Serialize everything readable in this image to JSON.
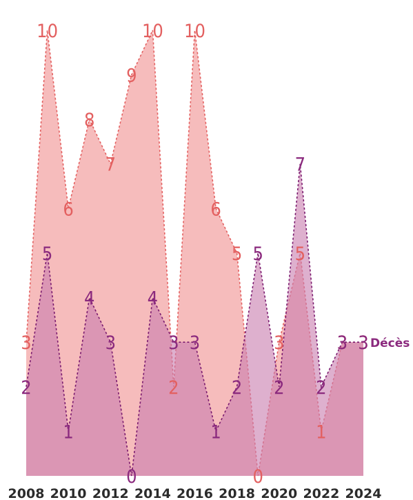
{
  "chart_data": {
    "type": "area",
    "title": "",
    "xlabel": "",
    "ylabel": "",
    "x": [
      2008,
      2009,
      2010,
      2011,
      2012,
      2013,
      2014,
      2015,
      2016,
      2017,
      2018,
      2019,
      2020,
      2021,
      2022,
      2023,
      2024
    ],
    "x_ticks": [
      "2008",
      "2010",
      "2012",
      "2014",
      "2016",
      "2018",
      "2020",
      "2022",
      "2024"
    ],
    "ylim": [
      0,
      10.4
    ],
    "grid": false,
    "legend": "none",
    "series": [
      {
        "values": [
          3,
          10,
          6,
          8,
          7,
          9,
          10,
          2,
          10,
          6,
          5,
          0,
          3,
          5,
          1,
          3,
          3
        ],
        "fill_color": "#f5b5b5",
        "line_color": "#e36060",
        "label_color": "#e36060",
        "fill_opacity": 0.9
      },
      {
        "name": "Décès",
        "values": [
          2,
          5,
          1,
          4,
          3,
          0,
          4,
          3,
          3,
          1,
          2,
          5,
          2,
          7,
          2,
          3,
          3
        ],
        "fill_color": "#c980b0",
        "line_color": "#7a1a6e",
        "label_color": "#8b2a7e",
        "fill_opacity": 0.62
      }
    ]
  }
}
